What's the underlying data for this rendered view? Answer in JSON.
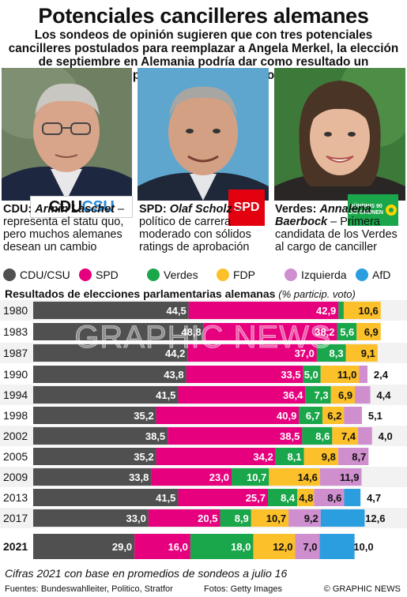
{
  "header": {
    "title": "Potenciales cancilleres alemanes",
    "subtitle": "Los sondeos de opinión sugieren que con tres potenciales cancilleres postulados para reemplazar a Angela Merkel, la elección de septiembre en Alemania podría dar como resultado un parlamento fragmentado"
  },
  "candidates": [
    {
      "party": "CDU:",
      "name": "Armin Laschet",
      "desc": "– representa el statu quo, pero muchos alemanes desean un cambio",
      "logo": "CDU CSU"
    },
    {
      "party": "SPD:",
      "name": "Olaf Scholz",
      "desc": "– político de carrera moderado con sólidos ratings de aprobación",
      "logo": "SPD"
    },
    {
      "party": "Verdes:",
      "name": "Annalena Baerbock",
      "desc": "– Primera candidata de los Verdes al cargo de canciller",
      "logo": "BÜNDNIS 90 DIE GRÜNEN"
    }
  ],
  "legend": [
    {
      "label": "CDU/CSU",
      "color": "#505050"
    },
    {
      "label": "SPD",
      "color": "#e6007e"
    },
    {
      "label": "Verdes",
      "color": "#1aa64a"
    },
    {
      "label": "FDP",
      "color": "#fcc02a"
    },
    {
      "label": "Izquierda",
      "color": "#cf8fcf"
    },
    {
      "label": "AfD",
      "color": "#2b9ee0"
    }
  ],
  "chart_data": {
    "type": "bar",
    "stacked": true,
    "title": "Resultados de elecciones parlamentarias alemanas",
    "subtitle": "(% particip. voto)",
    "categories": [
      "1980",
      "1983",
      "1987",
      "1990",
      "1994",
      "1998",
      "2002",
      "2005",
      "2009",
      "2013",
      "2017",
      "2021"
    ],
    "series": [
      {
        "name": "CDU/CSU",
        "values": [
          44.5,
          48.8,
          44.2,
          43.8,
          41.5,
          35.2,
          38.5,
          35.2,
          33.8,
          41.5,
          33.0,
          29.0
        ]
      },
      {
        "name": "SPD",
        "values": [
          42.9,
          38.2,
          37.0,
          33.5,
          36.4,
          40.9,
          38.5,
          34.2,
          23.0,
          25.7,
          20.5,
          16.0
        ]
      },
      {
        "name": "Verdes",
        "values": [
          1.5,
          5.6,
          8.3,
          5.0,
          7.3,
          6.7,
          8.6,
          8.1,
          10.7,
          8.4,
          8.9,
          18.0
        ]
      },
      {
        "name": "FDP",
        "values": [
          10.6,
          6.9,
          9.1,
          11.0,
          6.9,
          6.2,
          7.4,
          9.8,
          14.6,
          4.8,
          10.7,
          12.0
        ]
      },
      {
        "name": "Izquierda",
        "values": [
          null,
          null,
          null,
          2.4,
          4.4,
          5.1,
          4.0,
          8.7,
          11.9,
          8.6,
          9.2,
          7.0
        ]
      },
      {
        "name": "AfD",
        "values": [
          null,
          null,
          null,
          null,
          null,
          null,
          null,
          null,
          null,
          4.7,
          12.6,
          10.0
        ]
      }
    ],
    "value_labels": [
      [
        "44,5",
        "42,9",
        "1,5",
        "10,6",
        "",
        ""
      ],
      [
        "48,8",
        "38,2",
        "5,6",
        "6,9",
        "",
        ""
      ],
      [
        "44,2",
        "37,0",
        "8,3",
        "9,1",
        "",
        ""
      ],
      [
        "43,8",
        "33,5",
        "5,0",
        "11,0",
        "2,4",
        ""
      ],
      [
        "41,5",
        "36,4",
        "7,3",
        "6,9",
        "4,4",
        ""
      ],
      [
        "35,2",
        "40,9",
        "6,7",
        "6,2",
        "5,1",
        ""
      ],
      [
        "38,5",
        "38,5",
        "8,6",
        "7,4",
        "4,0",
        ""
      ],
      [
        "35,2",
        "34,2",
        "8,1",
        "9,8",
        "8,7",
        ""
      ],
      [
        "33,8",
        "23,0",
        "10,7",
        "14,6",
        "11,9",
        ""
      ],
      [
        "41,5",
        "25,7",
        "8,4",
        "4,8",
        "8,6",
        "4,7"
      ],
      [
        "33,0",
        "20,5",
        "8,9",
        "10,7",
        "9,2",
        "12,6"
      ],
      [
        "29,0",
        "16,0",
        "18,0",
        "12,0",
        "7,0",
        "10,0"
      ]
    ],
    "bold_category": "2021"
  },
  "watermark": "GRAPHIC NEWS",
  "footnote": "Cifras 2021 con base en promedios de sondeos a julio 16",
  "footer": {
    "sources": "Fuentes: Bundeswahlleiter, Politico, Stratfor",
    "photos": "Fotos: Getty Images",
    "credit": "© GRAPHIC NEWS"
  }
}
